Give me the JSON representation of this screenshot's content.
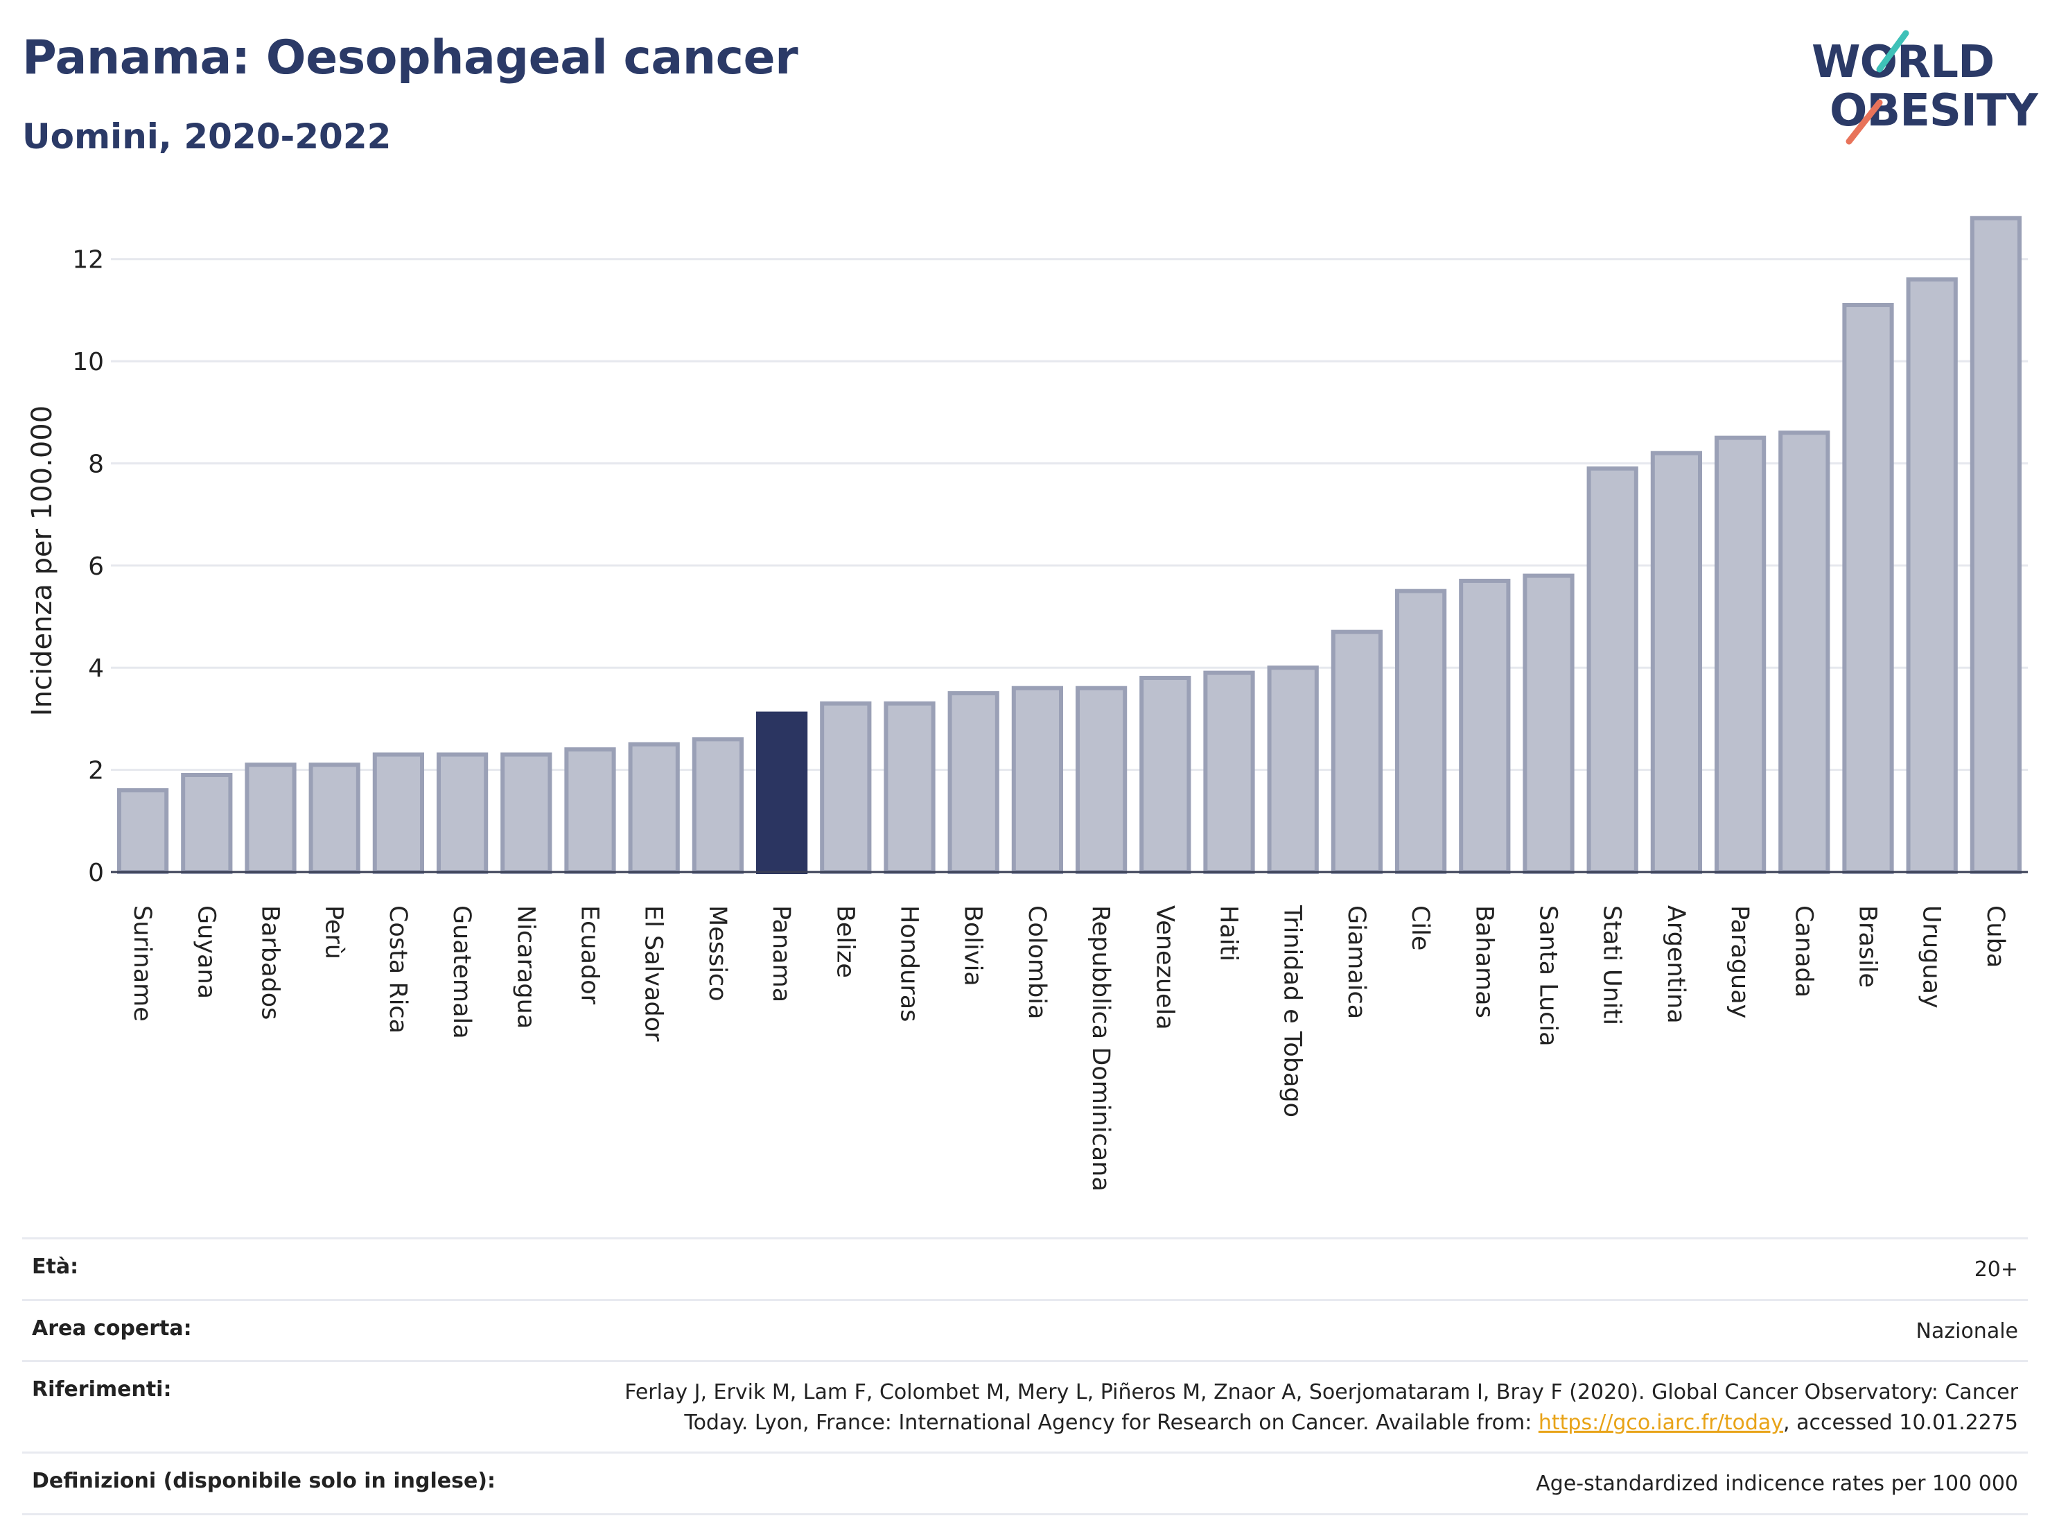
{
  "header": {
    "title": "Panama: Oesophageal cancer",
    "subtitle": "Uomini, 2020-2022"
  },
  "logo": {
    "line1": "WORLD",
    "line2": "OBESITY"
  },
  "colors": {
    "highlight": "#2b3561",
    "bar_fill": "#bcc0ce",
    "bar_stroke": "#9aa0b6",
    "logo_teal": "#3ec1b8",
    "logo_coral": "#e8735a",
    "link": "#e8a317"
  },
  "chart_data": {
    "type": "bar",
    "title": "Panama: Oesophageal cancer",
    "subtitle": "Uomini, 2020-2022",
    "ylabel": "Incidenza per 100.000",
    "ylim": [
      0,
      13
    ],
    "yticks": [
      0,
      2,
      4,
      6,
      8,
      10,
      12
    ],
    "grid": true,
    "highlight": "Panama",
    "categories": [
      "Suriname",
      "Guyana",
      "Barbados",
      "Perù",
      "Costa Rica",
      "Guatemala",
      "Nicaragua",
      "Ecuador",
      "El Salvador",
      "Messico",
      "Panama",
      "Belize",
      "Honduras",
      "Bolivia",
      "Colombia",
      "Repubblica Dominicana",
      "Venezuela",
      "Haiti",
      "Trinidad e Tobago",
      "Giamaica",
      "Cile",
      "Bahamas",
      "Santa Lucia",
      "Stati Uniti",
      "Argentina",
      "Paraguay",
      "Canada",
      "Brasile",
      "Uruguay",
      "Cuba"
    ],
    "values": [
      1.6,
      1.9,
      2.1,
      2.1,
      2.3,
      2.3,
      2.3,
      2.4,
      2.5,
      2.6,
      3.1,
      3.3,
      3.3,
      3.5,
      3.6,
      3.6,
      3.8,
      3.9,
      4.0,
      4.7,
      5.5,
      5.7,
      5.8,
      7.9,
      8.2,
      8.5,
      8.6,
      11.1,
      11.6,
      12.8
    ]
  },
  "meta": [
    {
      "key": "Età:",
      "value": "20+"
    },
    {
      "key": "Area coperta:",
      "value": "Nazionale"
    },
    {
      "key": "Riferimenti:",
      "value_line1": "Ferlay J, Ervik M, Lam F, Colombet M, Mery L, Piñeros M, Znaor A, Soerjomataram I, Bray F (2020). Global Cancer Observatory: Cancer",
      "value_line2_pre": "Today. Lyon, France: International Agency for Research on Cancer. Available from: ",
      "link": "https://gco.iarc.fr/today",
      "value_line2_post": ", accessed 10.01.2275"
    },
    {
      "key": "Definizioni (disponibile solo in inglese):",
      "value": "Age-standardized indicence rates per 100 000"
    }
  ]
}
